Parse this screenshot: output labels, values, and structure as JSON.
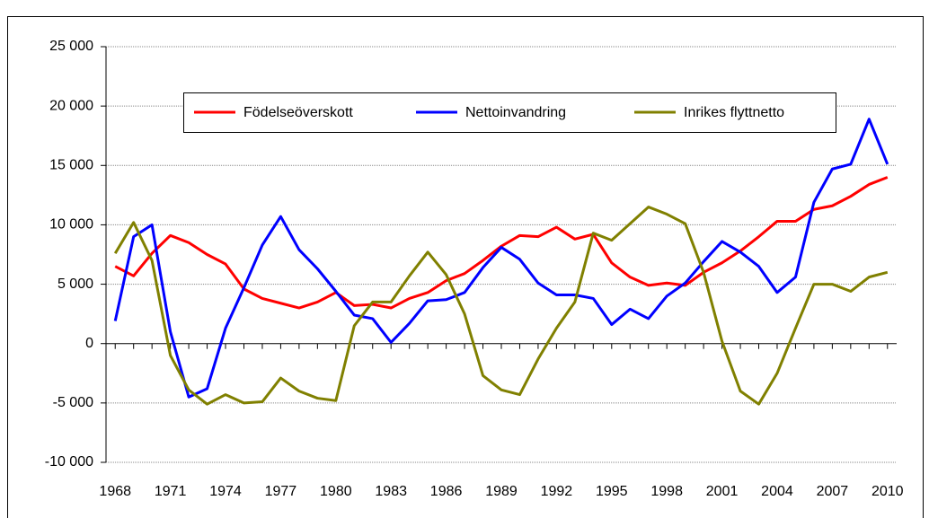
{
  "chart_data": {
    "type": "line",
    "x": [
      1968,
      1969,
      1970,
      1971,
      1972,
      1973,
      1974,
      1975,
      1976,
      1977,
      1978,
      1979,
      1980,
      1981,
      1982,
      1983,
      1984,
      1985,
      1986,
      1987,
      1988,
      1989,
      1990,
      1991,
      1992,
      1993,
      1994,
      1995,
      1996,
      1997,
      1998,
      1999,
      2000,
      2001,
      2002,
      2003,
      2004,
      2005,
      2006,
      2007,
      2008,
      2009,
      2010
    ],
    "series": [
      {
        "name": "Födelseöverskott",
        "color": "#ff0000",
        "values": [
          6500,
          5700,
          7600,
          9100,
          8500,
          7500,
          6700,
          4600,
          3800,
          3400,
          3000,
          3500,
          4300,
          3200,
          3300,
          3000,
          3800,
          4300,
          5300,
          5900,
          7000,
          8200,
          9100,
          9000,
          9800,
          8800,
          9200,
          6800,
          5600,
          4900,
          5100,
          4900,
          6000,
          6800,
          7800,
          9000,
          10300,
          10300,
          11300,
          11600,
          12400,
          13400,
          14000
        ]
      },
      {
        "name": "Nettoinvandring",
        "color": "#0000ff",
        "values": [
          1900,
          9000,
          10000,
          1000,
          -4500,
          -3800,
          1300,
          4700,
          8300,
          10700,
          7900,
          6300,
          4400,
          2400,
          2100,
          100,
          1700,
          3600,
          3700,
          4300,
          6400,
          8100,
          7100,
          5100,
          4100,
          4100,
          3800,
          1600,
          2900,
          2100,
          4000,
          5100,
          6900,
          8600,
          7700,
          6500,
          4300,
          5600,
          11900,
          14700,
          15100,
          18900,
          15100
        ]
      },
      {
        "name": "Inrikes flyttnetto",
        "color": "#808000",
        "values": [
          7600,
          10200,
          7000,
          -1000,
          -3900,
          -5100,
          -4300,
          -5000,
          -4900,
          -2900,
          -4000,
          -4600,
          -4800,
          1500,
          3500,
          3500,
          5700,
          7700,
          5800,
          2500,
          -2700,
          -3900,
          -4300,
          -1300,
          1300,
          3500,
          9300,
          8700,
          10100,
          11500,
          10900,
          10100,
          6000,
          200,
          -4000,
          -5100,
          -2500,
          1300,
          5000,
          5000,
          4400,
          5600,
          6000
        ]
      }
    ],
    "xlim": [
      1967.5,
      2010.5
    ],
    "xticks": [
      1968,
      1971,
      1974,
      1977,
      1980,
      1983,
      1986,
      1989,
      1992,
      1995,
      1998,
      2001,
      2004,
      2007,
      2010
    ],
    "ylim": [
      -10000,
      25000
    ],
    "yticks": [
      {
        "value": -10000,
        "label": "-10 000"
      },
      {
        "value": -5000,
        "label": "-5 000"
      },
      0,
      {
        "value": 5000,
        "label": "5 000"
      },
      {
        "value": 10000,
        "label": "10 000"
      },
      {
        "value": 15000,
        "label": "15 000"
      },
      {
        "value": 20000,
        "label": "20 000"
      },
      {
        "value": 25000,
        "label": "25 000"
      }
    ],
    "grid": true,
    "legend": "top"
  }
}
